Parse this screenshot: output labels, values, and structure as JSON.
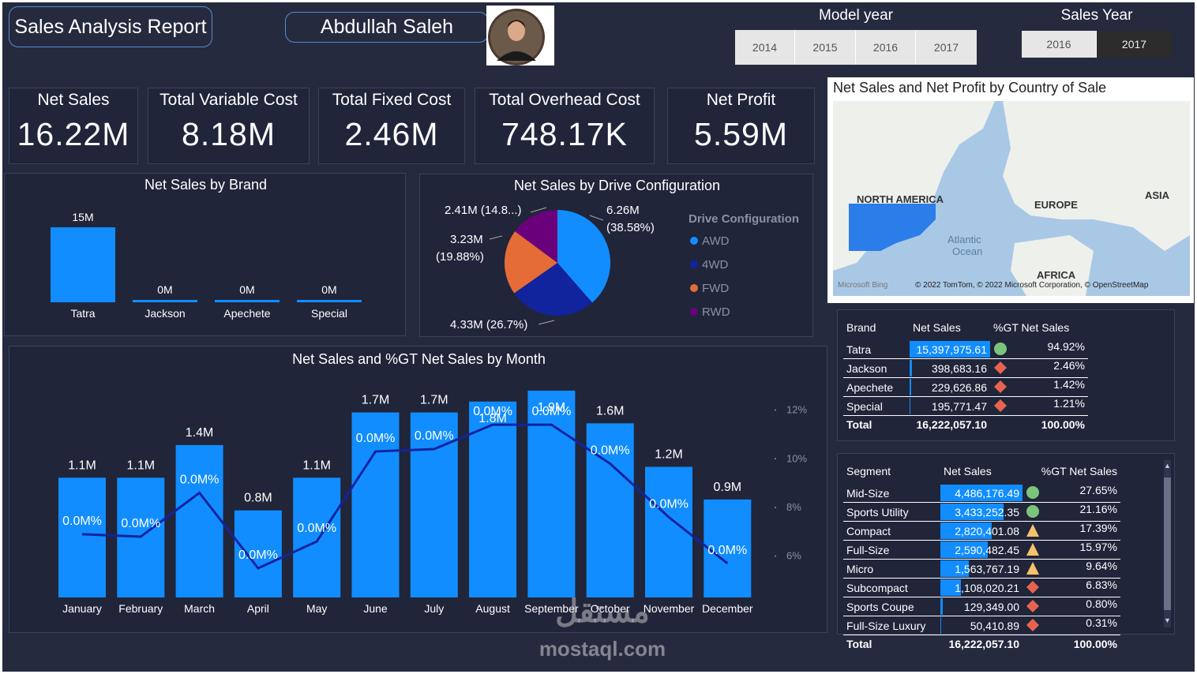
{
  "header": {
    "report_title": "Sales Analysis Report",
    "author": "Abdullah Saleh"
  },
  "model_year": {
    "title": "Model year",
    "options": [
      "2014",
      "2015",
      "2016",
      "2017"
    ]
  },
  "sales_year": {
    "title": "Sales Year",
    "options": [
      "2016",
      "2017"
    ],
    "selected": "2017"
  },
  "kpis": [
    {
      "label": "Net Sales",
      "value": "16.22M"
    },
    {
      "label": "Total Variable Cost",
      "value": "8.18M"
    },
    {
      "label": "Total Fixed Cost",
      "value": "2.46M"
    },
    {
      "label": "Total Overhead Cost",
      "value": "748.17K"
    },
    {
      "label": "Net Profit",
      "value": "5.59M"
    }
  ],
  "map": {
    "title": "Net Sales and Net Profit by Country of Sale",
    "labels": {
      "na": "NORTH AMERICA",
      "eu": "EUROPE",
      "asia": "ASIA",
      "africa": "AFRICA",
      "ocean1": "Atlantic",
      "ocean2": "Ocean"
    },
    "bing": "Microsoft Bing",
    "credits": "© 2022 TomTom, © 2022 Microsoft Corporation, © OpenStreetMap"
  },
  "brand_chart": {
    "title": "Net Sales by Brand",
    "categories": [
      "Tatra",
      "Jackson",
      "Apechete",
      "Special"
    ],
    "values": [
      15397975.61,
      398683.16,
      229626.86,
      195771.47
    ],
    "data_labels": [
      "15M",
      "0M",
      "0M",
      "0M"
    ]
  },
  "drive_chart": {
    "title": "Net Sales by Drive Configuration",
    "legend_title": "Drive Configuration",
    "legend": [
      {
        "name": "AWD",
        "color": "#118dff"
      },
      {
        "name": "4WD",
        "color": "#12239e"
      },
      {
        "name": "FWD",
        "color": "#e66c37"
      },
      {
        "name": "RWD",
        "color": "#6b007b"
      }
    ],
    "data_labels": {
      "awd_1": "6.26M",
      "awd_2": "(38.58%)",
      "fourwd": "4.33M (26.7%)",
      "fwd_1": "3.23M",
      "fwd_2": "(19.88%)",
      "rwd": "2.41M (14.8...)"
    }
  },
  "month_chart": {
    "title": "Net Sales and %GT Net Sales by Month",
    "right_axis_ticks": [
      "12%",
      "10%",
      "8%",
      "6%"
    ]
  },
  "brand_table": {
    "headers": [
      "Brand",
      "Net Sales",
      "%GT Net Sales"
    ],
    "rows": [
      {
        "name": "Tatra",
        "sales": "15,397,975.61",
        "pct": "94.92%",
        "icon": "green-circle-icon",
        "fill": 1.0
      },
      {
        "name": "Jackson",
        "sales": "398,683.16",
        "pct": "2.46%",
        "icon": "red-diamond-icon",
        "fill": 0.026
      },
      {
        "name": "Apechete",
        "sales": "229,626.86",
        "pct": "1.42%",
        "icon": "red-diamond-icon",
        "fill": 0.015
      },
      {
        "name": "Special",
        "sales": "195,771.47",
        "pct": "1.21%",
        "icon": "red-diamond-icon",
        "fill": 0.013
      }
    ],
    "total": {
      "name": "Total",
      "sales": "16,222,057.10",
      "pct": "100.00%"
    }
  },
  "segment_table": {
    "headers": [
      "Segment",
      "Net Sales",
      "%GT Net Sales"
    ],
    "rows": [
      {
        "name": "Mid-Size",
        "sales": "4,486,176.49",
        "pct": "27.65%",
        "icon": "green-circle-icon",
        "fill": 1.0
      },
      {
        "name": "Sports Utility",
        "sales": "3,433,252.35",
        "pct": "21.16%",
        "icon": "green-circle-icon",
        "fill": 0.765
      },
      {
        "name": "Compact",
        "sales": "2,820,401.08",
        "pct": "17.39%",
        "icon": "yellow-triangle-icon",
        "fill": 0.629
      },
      {
        "name": "Full-Size",
        "sales": "2,590,482.45",
        "pct": "15.97%",
        "icon": "yellow-triangle-icon",
        "fill": 0.577
      },
      {
        "name": "Micro",
        "sales": "1,563,767.19",
        "pct": "9.64%",
        "icon": "yellow-triangle-icon",
        "fill": 0.349
      },
      {
        "name": "Subcompact",
        "sales": "1,108,020.21",
        "pct": "6.83%",
        "icon": "red-diamond-icon",
        "fill": 0.247
      },
      {
        "name": "Sports Coupe",
        "sales": "129,349.00",
        "pct": "0.80%",
        "icon": "red-diamond-icon",
        "fill": 0.029
      },
      {
        "name": "Full-Size Luxury",
        "sales": "50,410.89",
        "pct": "0.31%",
        "icon": "red-diamond-icon",
        "fill": 0.011
      }
    ],
    "total": {
      "name": "Total",
      "sales": "16,222,057.10",
      "pct": "100.00%"
    }
  },
  "watermark": {
    "arabic": "مستقل",
    "latin": "mostaql.com"
  },
  "chart_data": [
    {
      "type": "bar",
      "title": "Net Sales by Brand",
      "categories": [
        "Tatra",
        "Jackson",
        "Apechete",
        "Special"
      ],
      "values": [
        15397975.61,
        398683.16,
        229626.86,
        195771.47
      ]
    },
    {
      "type": "pie",
      "title": "Net Sales by Drive Configuration",
      "categories": [
        "AWD",
        "4WD",
        "FWD",
        "RWD"
      ],
      "values": [
        6.26,
        4.33,
        3.23,
        2.41
      ],
      "percentages": [
        38.58,
        26.7,
        19.88,
        14.8
      ],
      "legend": "right"
    },
    {
      "type": "bar",
      "title": "Net Sales and %GT Net Sales by Month",
      "categories": [
        "January",
        "February",
        "March",
        "April",
        "May",
        "June",
        "July",
        "August",
        "September",
        "October",
        "November",
        "December"
      ],
      "series": [
        {
          "name": "Net Sales",
          "values": [
            1.1,
            1.1,
            1.4,
            0.8,
            1.1,
            1.7,
            1.7,
            1.8,
            1.9,
            1.6,
            1.2,
            0.9
          ]
        },
        {
          "name": "%GT Net Sales",
          "values": [
            6.9,
            6.8,
            8.6,
            5.5,
            6.6,
            10.3,
            10.4,
            11.4,
            11.4,
            9.8,
            7.6,
            5.7
          ]
        }
      ],
      "bar_labels": [
        "1.1M",
        "1.1M",
        "1.4M",
        "0.8M",
        "1.1M",
        "1.7M",
        "1.7M",
        "1.8M",
        "1.9M",
        "1.6M",
        "1.2M",
        "0.9M"
      ],
      "line_labels": [
        "0.0M%",
        "0.0M%",
        "0.0M%",
        "0.0M%",
        "0.0M%",
        "0.0M%",
        "0.0M%",
        "0.0M%",
        "0.0M%",
        "0.0M%",
        "0.0M%",
        "0.0M%"
      ],
      "y2_ticks": [
        "12%",
        "10%",
        "8%",
        "6%"
      ],
      "y2lim": [
        4.3,
        12.8
      ]
    }
  ]
}
